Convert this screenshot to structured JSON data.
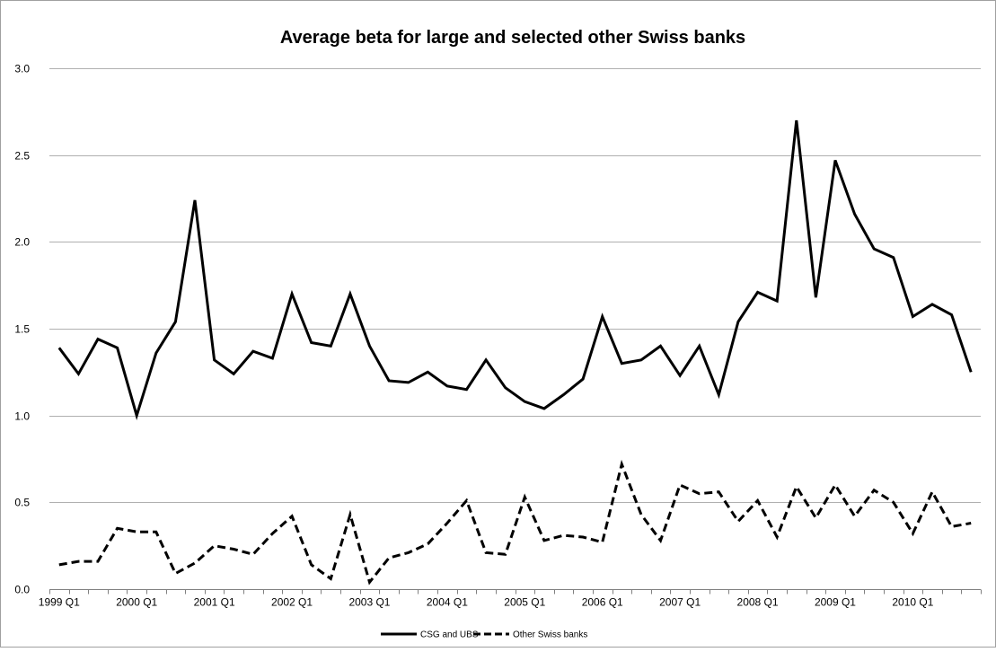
{
  "chart_data": {
    "type": "line",
    "title": "Average beta for large and selected other Swiss banks",
    "xlabel": "",
    "ylabel": "",
    "ylim": [
      0,
      3.0
    ],
    "y_ticks": [
      "0.0",
      "0.5",
      "1.0",
      "1.5",
      "2.0",
      "2.5",
      "3.0"
    ],
    "x_tick_labels": [
      "1999 Q1",
      "2000 Q1",
      "2001 Q1",
      "2002 Q1",
      "2003 Q1",
      "2004 Q1",
      "2005 Q1",
      "2006 Q1",
      "2007 Q1",
      "2008 Q1",
      "2009 Q1",
      "2010 Q1"
    ],
    "categories": [
      "1999 Q1",
      "1999 Q2",
      "1999 Q3",
      "1999 Q4",
      "2000 Q1",
      "2000 Q2",
      "2000 Q3",
      "2000 Q4",
      "2001 Q1",
      "2001 Q2",
      "2001 Q3",
      "2001 Q4",
      "2002 Q1",
      "2002 Q2",
      "2002 Q3",
      "2002 Q4",
      "2003 Q1",
      "2003 Q2",
      "2003 Q3",
      "2003 Q4",
      "2004 Q1",
      "2004 Q2",
      "2004 Q3",
      "2004 Q4",
      "2005 Q1",
      "2005 Q2",
      "2005 Q3",
      "2005 Q4",
      "2006 Q1",
      "2006 Q2",
      "2006 Q3",
      "2006 Q4",
      "2007 Q1",
      "2007 Q2",
      "2007 Q3",
      "2007 Q4",
      "2008 Q1",
      "2008 Q2",
      "2008 Q3",
      "2008 Q4",
      "2009 Q1",
      "2009 Q2",
      "2009 Q3",
      "2009 Q4",
      "2010 Q1",
      "2010 Q2",
      "2010 Q3",
      "2010 Q4"
    ],
    "series": [
      {
        "name": "CSG and UBS",
        "dash": "solid",
        "color": "#000000",
        "values": [
          1.39,
          1.24,
          1.44,
          1.39,
          1.0,
          1.36,
          1.54,
          2.24,
          1.32,
          1.24,
          1.37,
          1.33,
          1.7,
          1.42,
          1.4,
          1.7,
          1.4,
          1.2,
          1.19,
          1.25,
          1.17,
          1.15,
          1.32,
          1.16,
          1.08,
          1.04,
          1.12,
          1.21,
          1.57,
          1.3,
          1.32,
          1.4,
          1.23,
          1.4,
          1.12,
          1.54,
          1.71,
          1.66,
          2.7,
          1.68,
          2.47,
          2.16,
          1.96,
          1.91,
          1.57,
          1.64,
          1.58,
          1.25
        ]
      },
      {
        "name": "Other Swiss banks",
        "dash": "dashed",
        "color": "#000000",
        "values": [
          0.14,
          0.16,
          0.16,
          0.35,
          0.33,
          0.33,
          0.09,
          0.15,
          0.25,
          0.23,
          0.2,
          0.32,
          0.42,
          0.14,
          0.06,
          0.43,
          0.04,
          0.18,
          0.21,
          0.26,
          0.38,
          0.51,
          0.21,
          0.2,
          0.53,
          0.28,
          0.31,
          0.3,
          0.27,
          0.72,
          0.43,
          0.28,
          0.6,
          0.55,
          0.56,
          0.39,
          0.51,
          0.3,
          0.59,
          0.41,
          0.6,
          0.42,
          0.57,
          0.5,
          0.32,
          0.56,
          0.36,
          0.38
        ]
      }
    ],
    "legend_position": "bottom",
    "grid": true
  }
}
